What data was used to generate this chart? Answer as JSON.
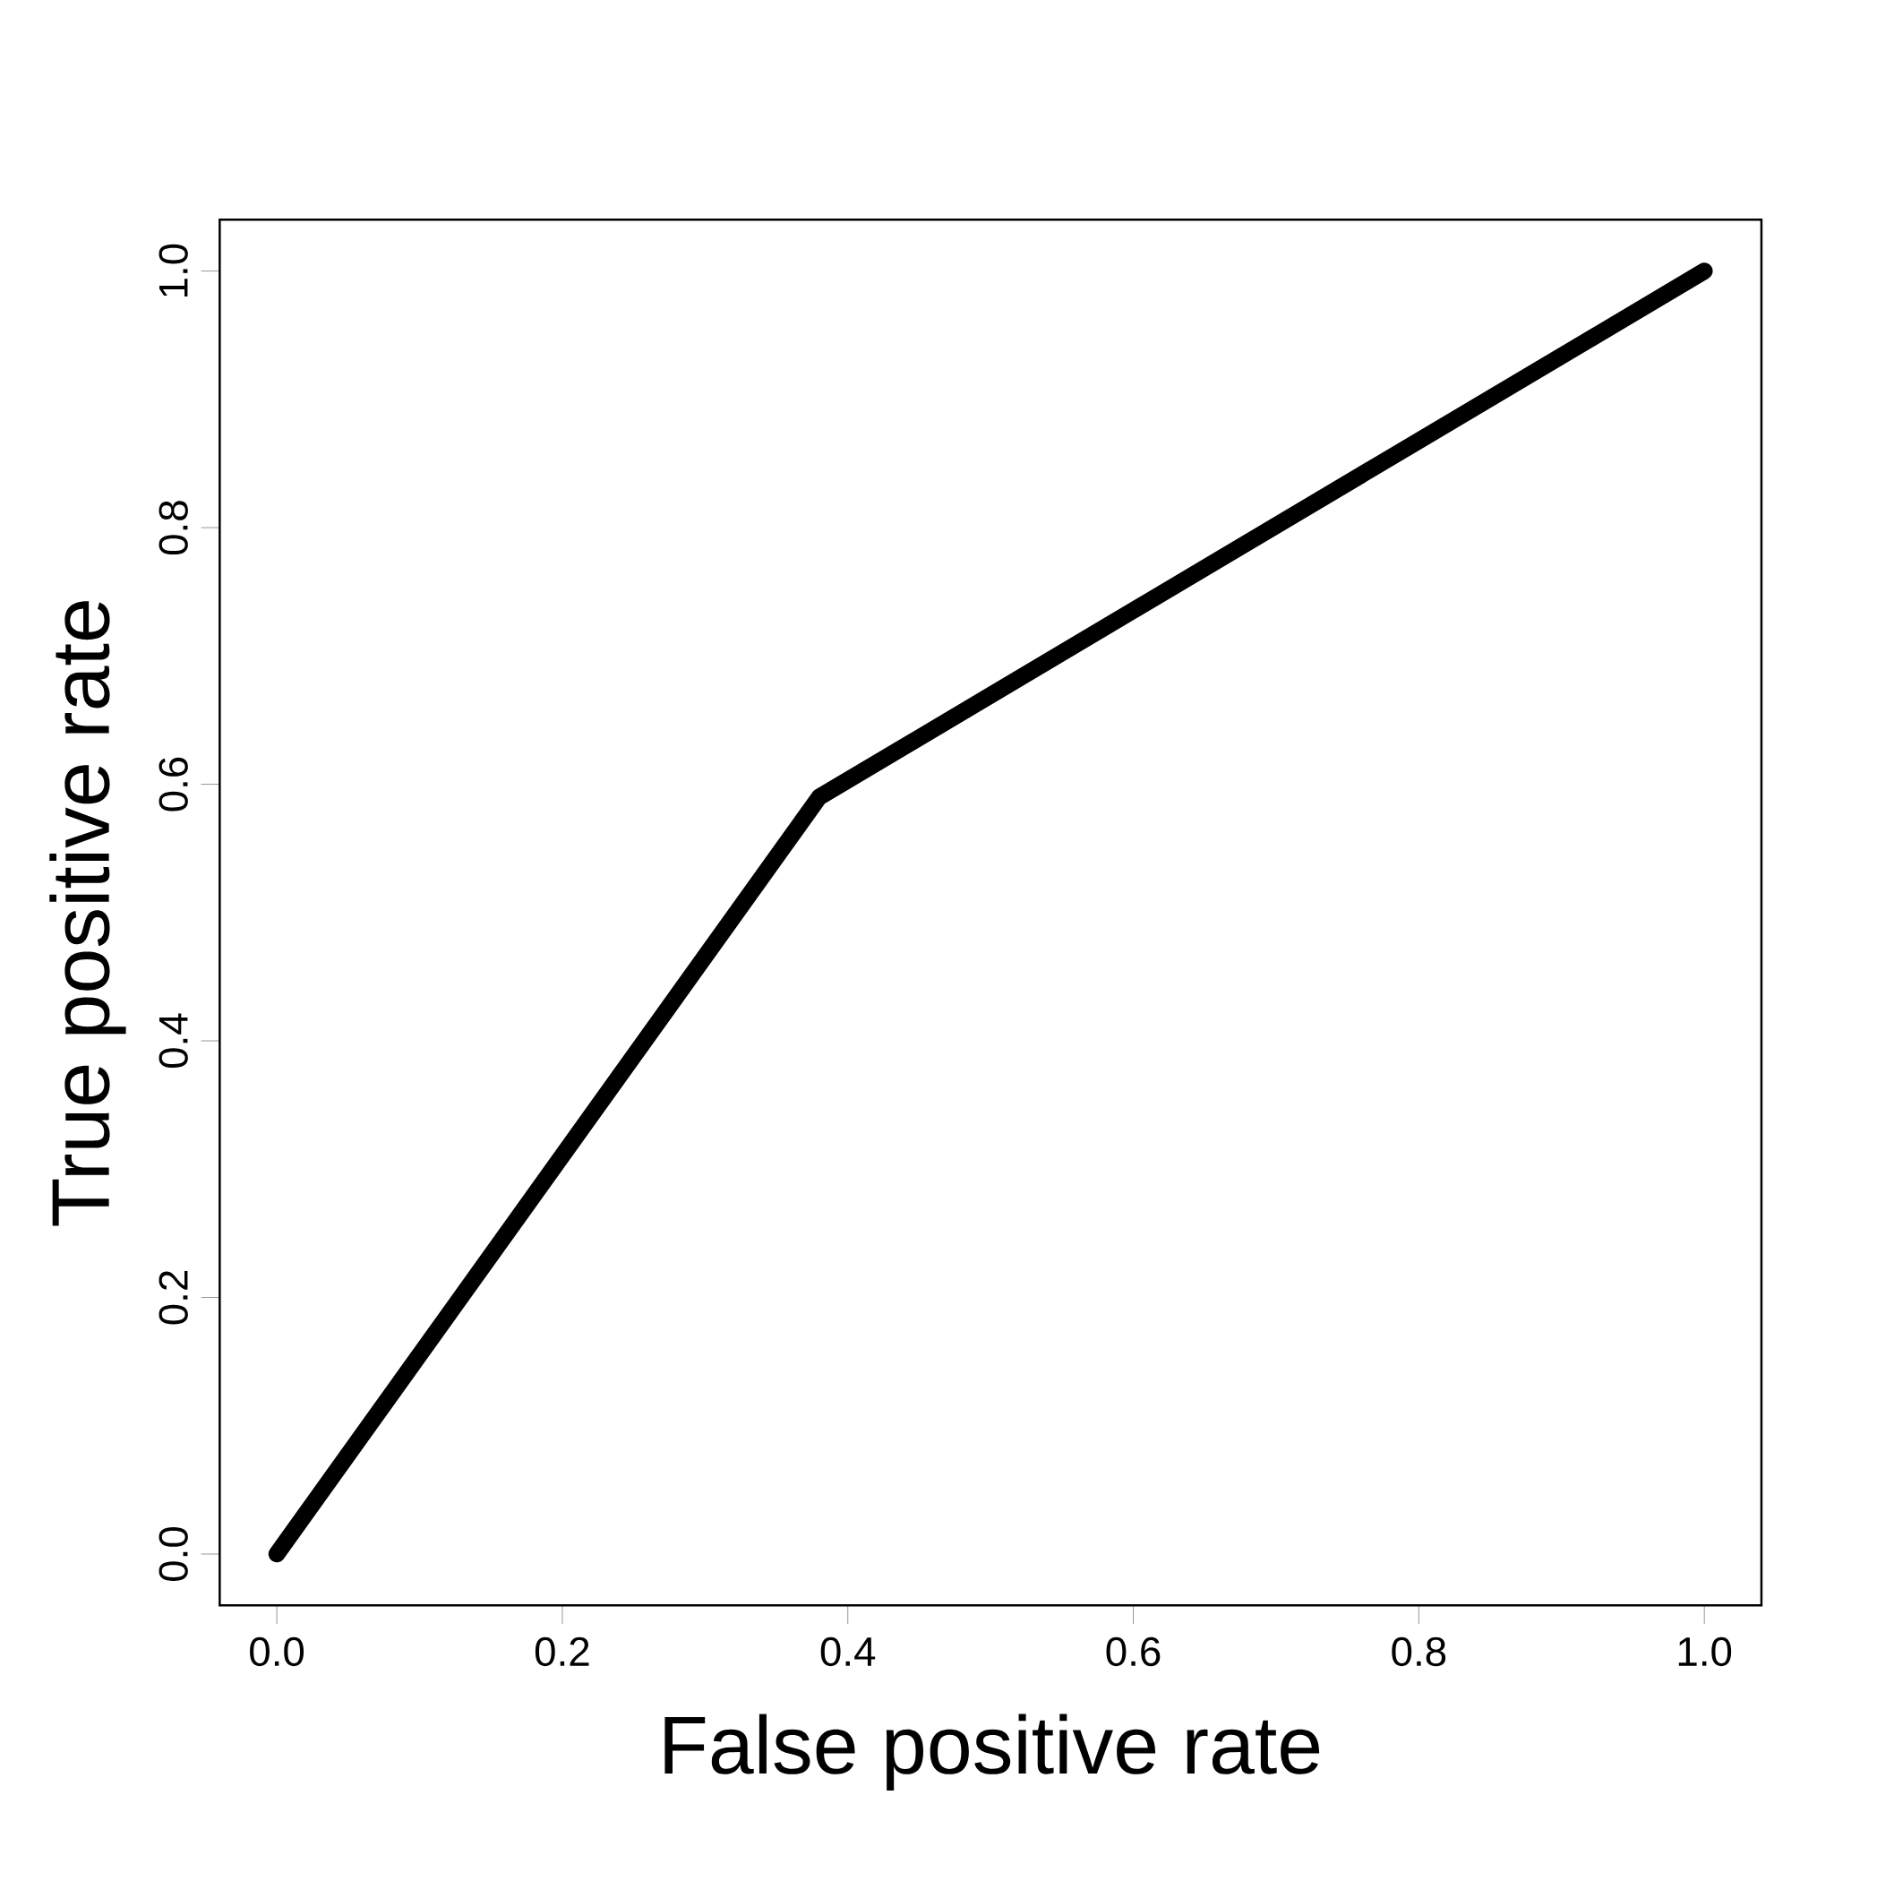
{
  "chart_data": {
    "type": "line",
    "xlabel": "False positive rate",
    "ylabel": "True positive rate",
    "x": [
      0,
      0.38,
      1
    ],
    "series": [
      {
        "color": "#000000",
        "values": [
          0,
          0.59,
          1
        ]
      }
    ],
    "xlim": [
      -0.04,
      1.04
    ],
    "ylim": [
      -0.04,
      1.04
    ],
    "xticks": [
      {
        "value": 0,
        "label": "0.0"
      },
      {
        "value": 0.2,
        "label": "0.2"
      },
      {
        "value": 0.4,
        "label": "0.4"
      },
      {
        "value": 0.6,
        "label": "0.6"
      },
      {
        "value": 0.8,
        "label": "0.8"
      },
      {
        "value": 1,
        "label": "1.0"
      }
    ],
    "yticks": [
      {
        "value": 0,
        "label": "0.0"
      },
      {
        "value": 0.2,
        "label": "0.2"
      },
      {
        "value": 0.4,
        "label": "0.4"
      },
      {
        "value": 0.6,
        "label": "0.6"
      },
      {
        "value": 0.8,
        "label": "0.8"
      },
      {
        "value": 1,
        "label": "1.0"
      }
    ],
    "grid": false,
    "marker": "none",
    "line_style": "solid"
  }
}
